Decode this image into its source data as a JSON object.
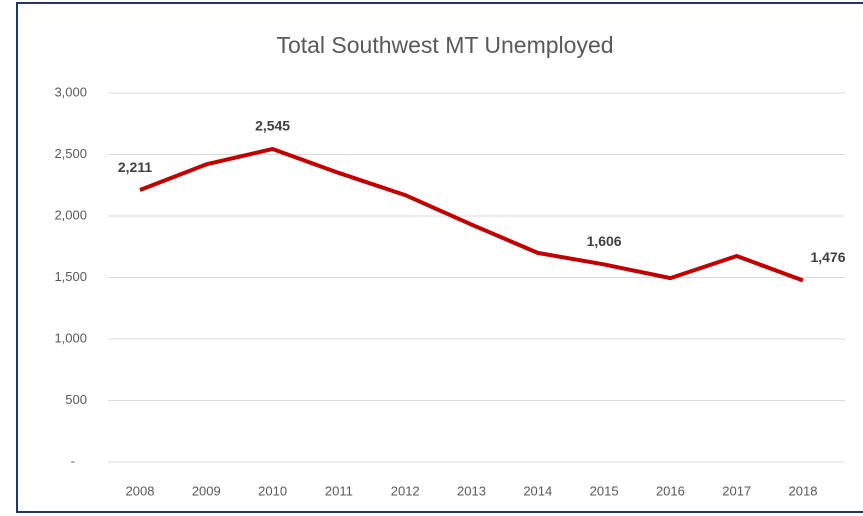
{
  "chart_data": {
    "type": "line",
    "title": "Total Southwest MT Unemployed",
    "categories": [
      "2008",
      "2009",
      "2010",
      "2011",
      "2012",
      "2013",
      "2014",
      "2015",
      "2016",
      "2017",
      "2018"
    ],
    "series": [
      {
        "name": "Total Southwest MT Unemployed",
        "color": "#c00000",
        "values": [
          2211,
          2420,
          2545,
          2350,
          2170,
          1930,
          1700,
          1606,
          1495,
          1675,
          1476
        ],
        "value_labels": [
          "2,211",
          null,
          "2,545",
          null,
          null,
          null,
          null,
          "1,606",
          null,
          null,
          "1,476"
        ]
      }
    ],
    "ylim": [
      0,
      3000
    ],
    "yticks": [
      {
        "value": 0,
        "label": "-"
      },
      500,
      {
        "value": 1000,
        "label": "1,000"
      },
      {
        "value": 1500,
        "label": "1,500"
      },
      {
        "value": 2000,
        "label": "2,000"
      },
      {
        "value": 2500,
        "label": "2,500"
      },
      {
        "value": 3000,
        "label": "3,000"
      }
    ],
    "grid": true
  }
}
